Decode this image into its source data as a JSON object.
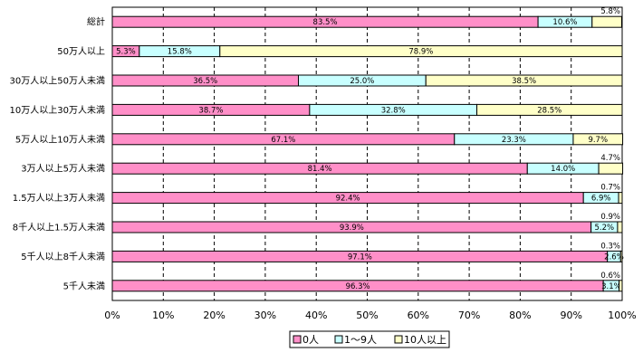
{
  "chart_data": {
    "type": "bar",
    "orientation": "horizontal",
    "stacked": "percent",
    "title": "",
    "xlabel": "",
    "ylabel": "",
    "xlim": [
      0,
      100
    ],
    "grid": "vertical-dashed",
    "legend_position": "bottom",
    "x_ticks": [
      "0%",
      "10%",
      "20%",
      "30%",
      "40%",
      "50%",
      "60%",
      "70%",
      "80%",
      "90%",
      "100%"
    ],
    "categories": [
      "総計",
      "50万人以上",
      "30万人以上50万人未満",
      "10万人以上30万人未満",
      "5万人以上10万人未満",
      "3万人以上5万人未満",
      "1.5万人以上3万人未満",
      "8千人以上1.5万人未満",
      "5千人以上8千人未満",
      "5千人未満"
    ],
    "series": [
      {
        "name": "0人",
        "color": "#ff8fc8",
        "values": [
          83.5,
          5.3,
          36.5,
          38.7,
          67.1,
          81.4,
          92.4,
          93.9,
          97.1,
          96.3
        ],
        "labels": [
          "83.5%",
          "5.3%",
          "36.5%",
          "38.7%",
          "67.1%",
          "81.4%",
          "92.4%",
          "93.9%",
          "97.1%",
          "96.3%"
        ]
      },
      {
        "name": "1～9人",
        "color": "#c8ffff",
        "values": [
          10.6,
          15.8,
          25.0,
          32.8,
          23.3,
          14.0,
          6.9,
          5.2,
          2.6,
          3.1
        ],
        "labels": [
          "10.6%",
          "15.8%",
          "25.0%",
          "32.8%",
          "23.3%",
          "14.0%",
          "6.9%",
          "5.2%",
          "2.6%",
          "3.1%"
        ]
      },
      {
        "name": "10人以上",
        "color": "#ffffc8",
        "values": [
          5.8,
          78.9,
          38.5,
          28.5,
          9.7,
          4.7,
          0.7,
          0.9,
          0.3,
          0.6
        ],
        "labels": [
          "5.8%",
          "78.9%",
          "38.5%",
          "28.5%",
          "9.7%",
          "4.7%",
          "0.7%",
          "0.9%",
          "0.3%",
          "0.6%"
        ]
      }
    ]
  }
}
